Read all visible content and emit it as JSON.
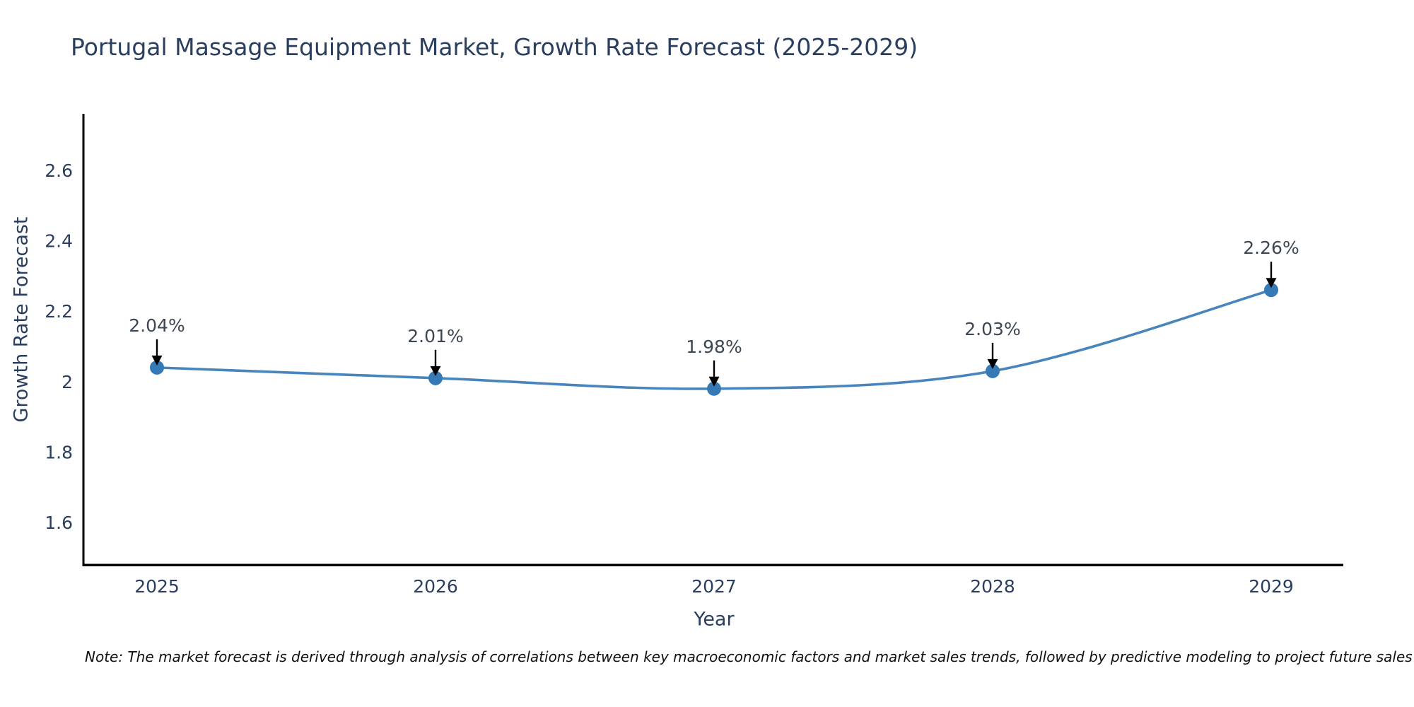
{
  "note": "Note: The market forecast is derived through analysis of correlations between key macroeconomic factors and market sales trends, followed by predictive modeling to project future sales",
  "chart_data": {
    "type": "line",
    "title": "Portugal Massage Equipment Market, Growth Rate Forecast (2025-2029)",
    "xlabel": "Year",
    "ylabel": "Growth Rate Forecast",
    "categories": [
      "2025",
      "2026",
      "2027",
      "2028",
      "2029"
    ],
    "values": [
      2.04,
      2.01,
      1.98,
      2.03,
      2.26
    ],
    "point_labels": [
      "2.04%",
      "2.01%",
      "1.98%",
      "2.03%",
      "2.26%"
    ],
    "yticks": [
      1.6,
      1.8,
      2,
      2.2,
      2.4,
      2.6
    ],
    "ylim": [
      1.48,
      2.76
    ],
    "grid": false,
    "legend": false,
    "annotations": "black down-arrows from each percentage label to its data point",
    "colors": {
      "line": "#4985bd",
      "marker": "#3579b7",
      "axis_spine": "#000000",
      "arrow": "#000000",
      "text": "#2a3f5f",
      "annotation_text": "#3d4754",
      "background": "#ffffff"
    }
  }
}
